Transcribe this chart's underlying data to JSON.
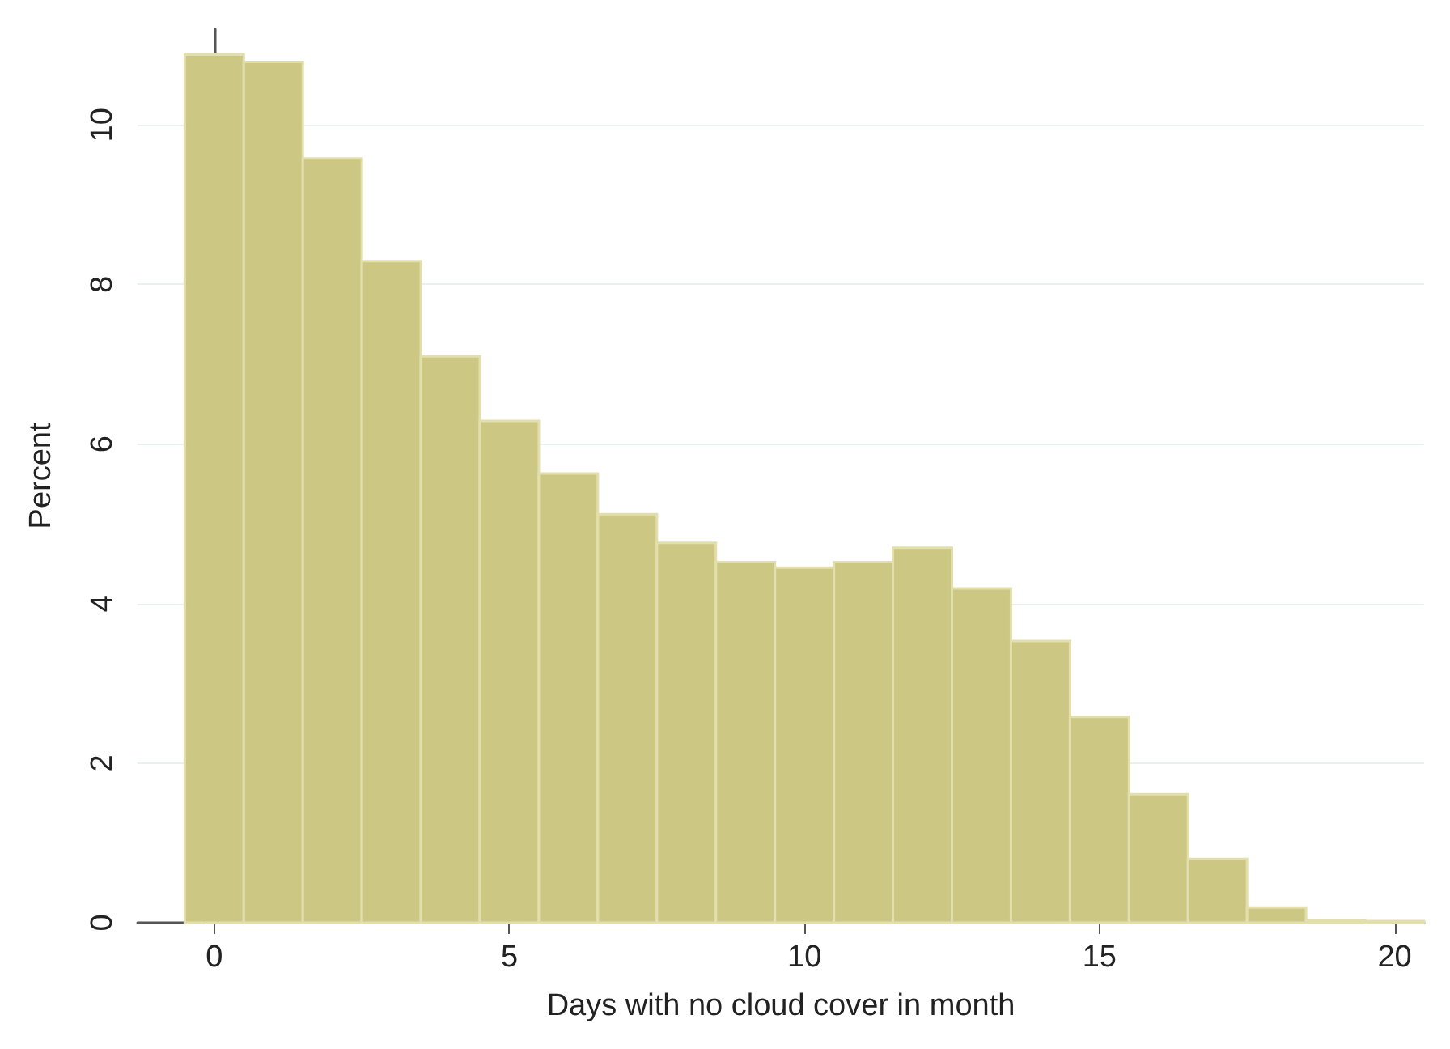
{
  "chart_data": {
    "type": "histogram",
    "xlabel": "Days with no cloud cover in month",
    "ylabel": "Percent",
    "bins": [
      -0.5,
      0.5,
      1.5,
      2.5,
      3.5,
      4.5,
      5.5,
      6.5,
      7.5,
      8.5,
      9.5,
      10.5,
      11.5,
      12.5,
      13.5,
      14.5,
      15.5,
      16.5,
      17.5,
      18.5,
      19.5,
      20.5
    ],
    "values": [
      10.88,
      10.79,
      9.58,
      8.29,
      7.1,
      6.29,
      5.63,
      5.12,
      4.76,
      4.52,
      4.45,
      4.52,
      4.7,
      4.19,
      3.53,
      2.58,
      1.61,
      0.8,
      0.19,
      0.03,
      0.02
    ],
    "color": "#cdc784",
    "xlim": [
      -1.3,
      20.5
    ],
    "xticks": [
      0,
      5,
      10,
      15,
      20
    ],
    "ylim": [
      0,
      11.2
    ],
    "yticks": [
      0,
      2,
      4,
      6,
      8,
      10
    ],
    "grid": "y"
  }
}
